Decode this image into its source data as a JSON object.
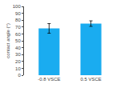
{
  "chart_data": {
    "type": "bar",
    "categories": [
      "-0.8 VSCE",
      "0.5 VSCE"
    ],
    "values": [
      68,
      75
    ],
    "errors": [
      7,
      4
    ],
    "color": "#1AACF0",
    "ylabel": "contact angle (°)",
    "ylim": [
      0,
      100
    ],
    "yticks": [
      0,
      10,
      20,
      30,
      40,
      50,
      60,
      70,
      80,
      90,
      100
    ],
    "grid": false
  }
}
